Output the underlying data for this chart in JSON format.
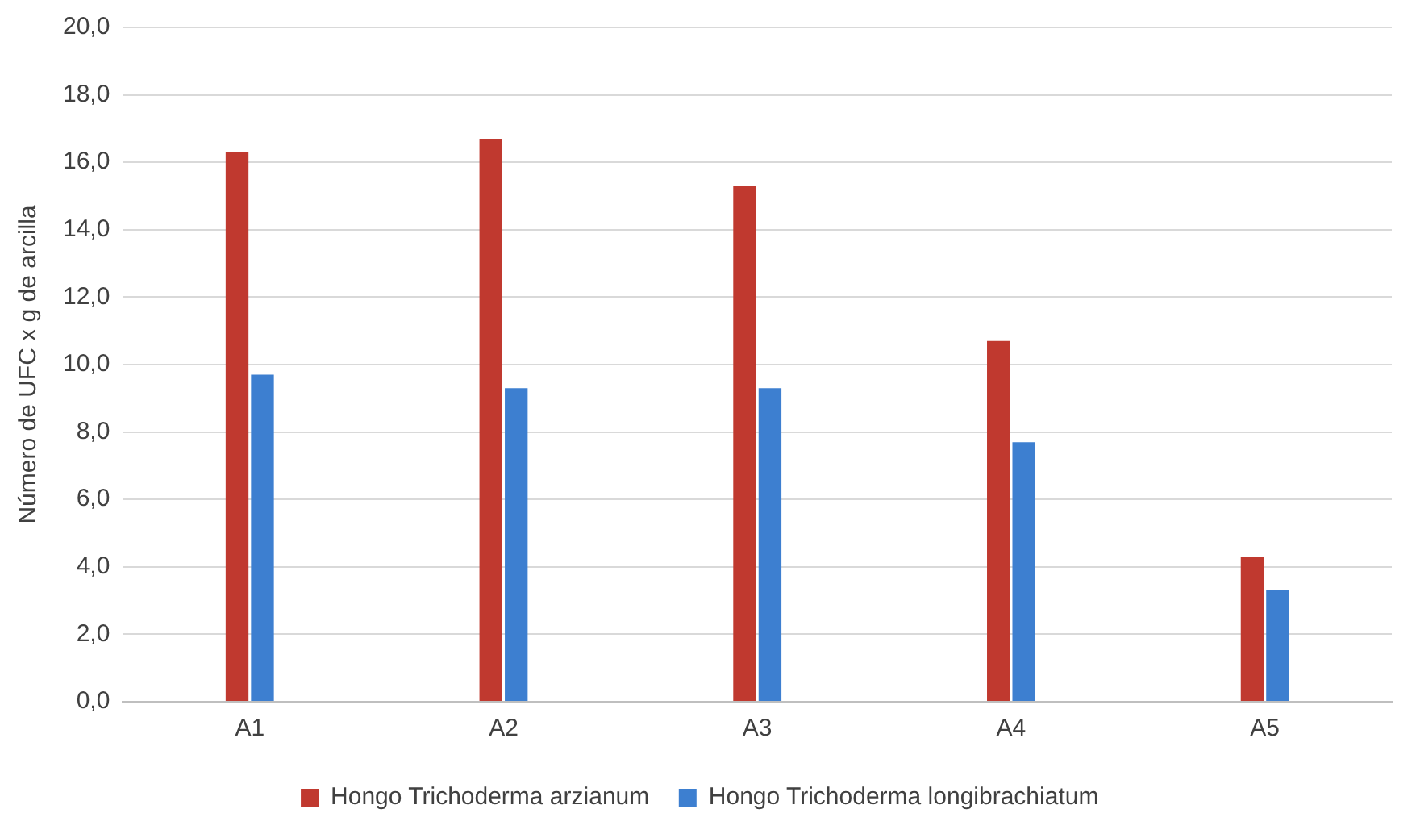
{
  "chart_data": {
    "type": "bar",
    "ylabel": "Número de UFC x g de arcilla",
    "categories": [
      "A1",
      "A2",
      "A3",
      "A4",
      "A5"
    ],
    "series": [
      {
        "name": "Hongo Trichoderma arzianum",
        "color": "#c0392f",
        "values": [
          16.3,
          16.7,
          15.3,
          10.7,
          4.3
        ]
      },
      {
        "name": "Hongo Trichoderma longibrachiatum",
        "color": "#3d7fd0",
        "values": [
          9.7,
          9.3,
          9.3,
          7.7,
          3.3
        ]
      }
    ],
    "ylim": [
      0,
      20
    ],
    "yticks": [
      {
        "value": 0,
        "label": "0,0"
      },
      {
        "value": 2,
        "label": "2,0"
      },
      {
        "value": 4,
        "label": "4,0"
      },
      {
        "value": 6,
        "label": "6,0"
      },
      {
        "value": 8,
        "label": "8,0"
      },
      {
        "value": 10,
        "label": "10,0"
      },
      {
        "value": 12,
        "label": "12,0"
      },
      {
        "value": 14,
        "label": "14,0"
      },
      {
        "value": 16,
        "label": "16,0"
      },
      {
        "value": 18,
        "label": "18,0"
      },
      {
        "value": 20,
        "label": "20,0"
      }
    ],
    "grid": "y",
    "legend": "bottom"
  }
}
